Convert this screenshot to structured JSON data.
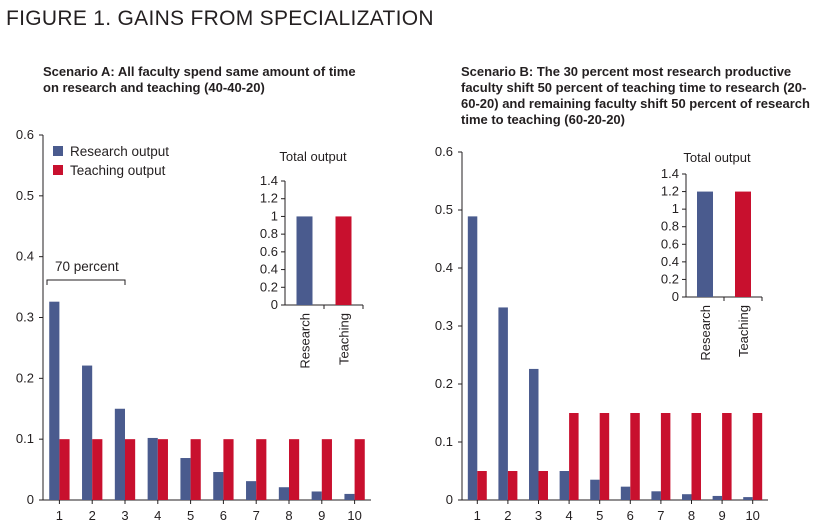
{
  "figure_title": "FIGURE 1. GAINS FROM SPECIALIZATION",
  "colors": {
    "research": "#4a5b8e",
    "teaching": "#c8102e",
    "axis": "#231f20"
  },
  "chart_data": [
    {
      "type": "bar",
      "panel": "A",
      "title": "Scenario A: All faculty spend same amount of time\non research and teaching (40-40-20)",
      "categories": [
        "1",
        "2",
        "3",
        "4",
        "5",
        "6",
        "7",
        "8",
        "9",
        "10"
      ],
      "series": [
        {
          "name": "Research output",
          "values": [
            0.326,
            0.221,
            0.15,
            0.102,
            0.069,
            0.046,
            0.031,
            0.021,
            0.014,
            0.01
          ]
        },
        {
          "name": "Teaching output",
          "values": [
            0.1,
            0.1,
            0.1,
            0.1,
            0.1,
            0.1,
            0.1,
            0.1,
            0.1,
            0.1
          ]
        }
      ],
      "ylim": [
        0,
        0.6
      ],
      "yticks": [
        "0",
        "0.1",
        "0.2",
        "0.3",
        "0.4",
        "0.5",
        "0.6"
      ],
      "legend": "top-left",
      "annotation": "70 percent",
      "inset": {
        "title": "Total output",
        "categories": [
          "Research",
          "Teaching"
        ],
        "values": [
          1.0,
          1.0
        ],
        "ylim": [
          0,
          1.4
        ],
        "yticks": [
          "0",
          "0.2",
          "0.4",
          "0.6",
          "0.8",
          "1",
          "1.2",
          "1.4"
        ]
      }
    },
    {
      "type": "bar",
      "panel": "B",
      "title": "Scenario B: The 30 percent most research productive faculty shift 50 percent of teaching time to research (20-60-20) and remaining faculty shift 50 percent of research time to teaching (60-20-20)",
      "categories": [
        "1",
        "2",
        "3",
        "4",
        "5",
        "6",
        "7",
        "8",
        "9",
        "10"
      ],
      "series": [
        {
          "name": "Research output",
          "values": [
            0.489,
            0.332,
            0.226,
            0.05,
            0.035,
            0.023,
            0.015,
            0.01,
            0.007,
            0.005
          ]
        },
        {
          "name": "Teaching output",
          "values": [
            0.05,
            0.05,
            0.05,
            0.15,
            0.15,
            0.15,
            0.15,
            0.15,
            0.15,
            0.15
          ]
        }
      ],
      "ylim": [
        0,
        0.6
      ],
      "yticks": [
        "0",
        "0.1",
        "0.2",
        "0.3",
        "0.4",
        "0.5",
        "0.6"
      ],
      "inset": {
        "title": "Total output",
        "categories": [
          "Research",
          "Teaching"
        ],
        "values": [
          1.2,
          1.2
        ],
        "ylim": [
          0,
          1.4
        ],
        "yticks": [
          "0",
          "0.2",
          "0.4",
          "0.6",
          "0.8",
          "1",
          "1.2",
          "1.4"
        ]
      }
    }
  ]
}
